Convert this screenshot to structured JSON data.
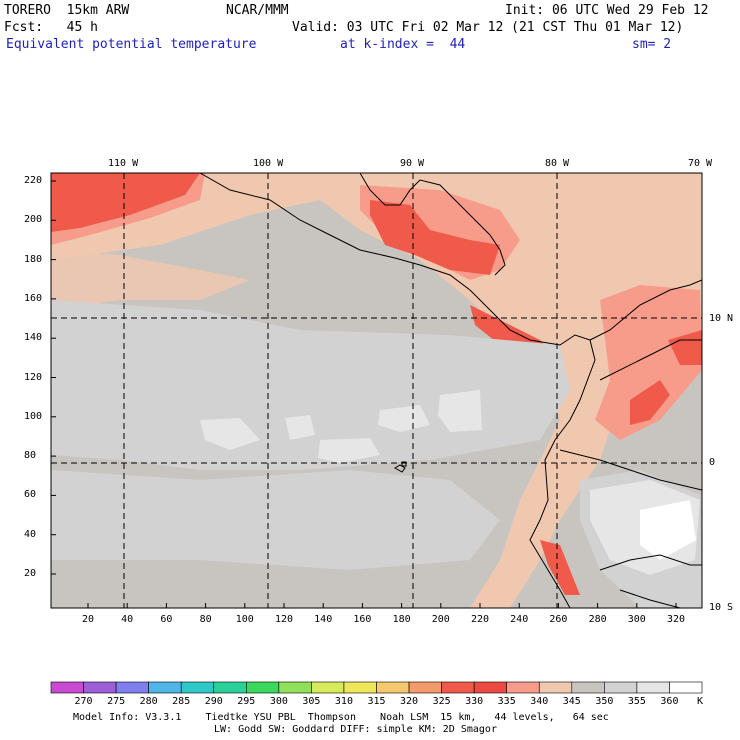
{
  "header": {
    "model": "TORERO  15km ARW",
    "center": "NCAR/MMM",
    "init": "Init: 06 UTC Wed 29 Feb 12",
    "fcst": "Fcst:   45 h",
    "valid": "Valid: 03 UTC Fri 02 Mar 12 (21 CST Thu 01 Mar 12)",
    "field": "Equivalent potential temperature",
    "level": "at k-index =  44",
    "smooth": "sm= 2"
  },
  "map": {
    "top_lon_labels": [
      "110 W",
      "100 W",
      "90 W",
      "80 W",
      "70 W"
    ],
    "right_lat_labels": [
      "10 N",
      "0",
      "10 S"
    ],
    "y_ticks": [
      "220",
      "200",
      "180",
      "160",
      "140",
      "120",
      "100",
      "80",
      "60",
      "40",
      "20"
    ],
    "x_ticks": [
      "20",
      "40",
      "60",
      "80",
      "100",
      "120",
      "140",
      "160",
      "180",
      "200",
      "220",
      "240",
      "260",
      "280",
      "300",
      "320"
    ]
  },
  "colorbar": {
    "unit": "K",
    "levels": [
      "270",
      "275",
      "280",
      "285",
      "290",
      "295",
      "300",
      "305",
      "310",
      "315",
      "320",
      "325",
      "330",
      "335",
      "340",
      "345",
      "350",
      "355",
      "360"
    ],
    "colors": [
      "#c84bd2",
      "#9d5fd6",
      "#7f7ff0",
      "#4fb6e8",
      "#2ec8c8",
      "#2ad09a",
      "#3ad85e",
      "#92e05a",
      "#d6ea5a",
      "#f0e65a",
      "#f5c86e",
      "#f59a6a",
      "#ef5a4a",
      "#ec4a40",
      "#f79c8a",
      "#f0c8b0",
      "#c8c4c0",
      "#d2d2d2",
      "#e6e6e6",
      "#ffffff"
    ]
  },
  "footer": {
    "line1": "Model Info: V3.3.1    Tiedtke YSU PBL  Thompson    Noah LSM  15 km,   44 levels,   64 sec",
    "line2": "LW: Godd SW: Goddard DIFF: simple KM: 2D Smagor"
  }
}
